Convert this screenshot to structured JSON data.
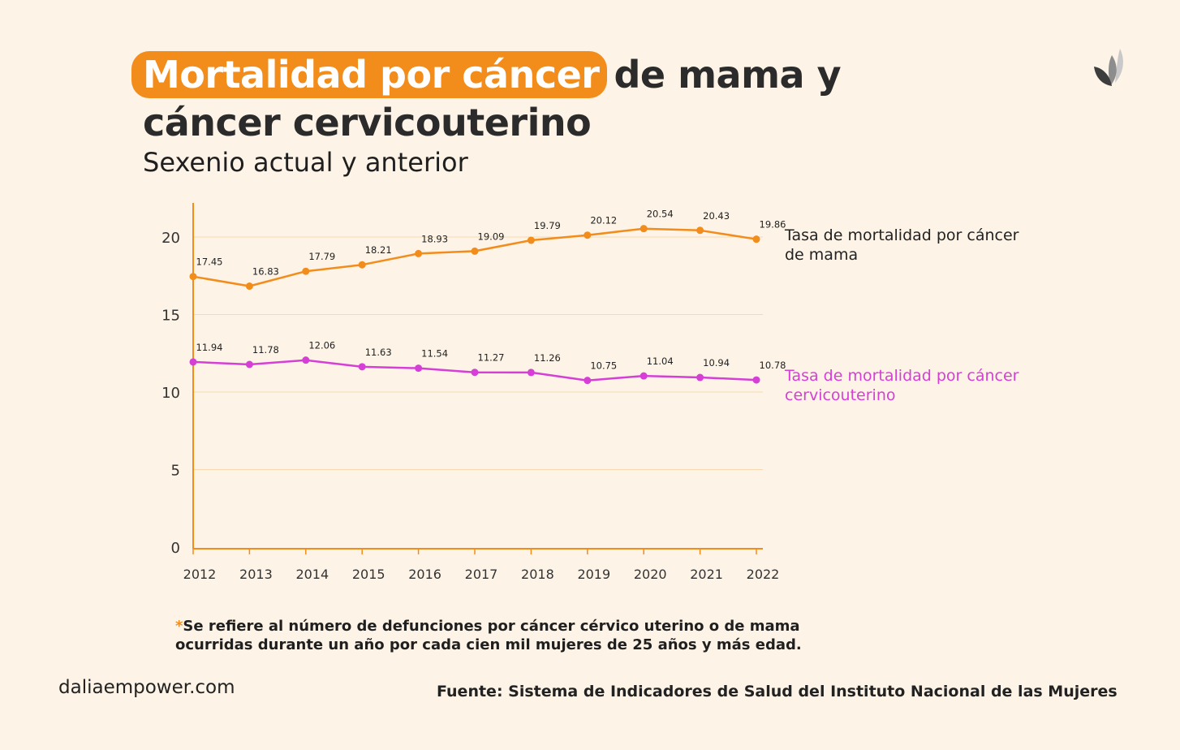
{
  "title": {
    "highlight": "Mortalidad por cáncer",
    "rest_line1": "de mama y",
    "line2": "cáncer cervicouterino"
  },
  "subtitle": "Sexenio actual y anterior",
  "colors": {
    "accent": "#f28c1b",
    "series_mama": "#f28c1b",
    "series_cervico": "#d63fd6",
    "background": "#fdf3e6"
  },
  "logo": {
    "icon": "leaf-logo-icon"
  },
  "chart_data": {
    "type": "line",
    "categories": [
      "2012",
      "2013",
      "2014",
      "2015",
      "2016",
      "2017",
      "2018",
      "2019",
      "2020",
      "2021",
      "2022"
    ],
    "series": [
      {
        "name": "Tasa de mortalidad por cáncer de mama",
        "name_lines": [
          "Tasa de mortalidad por cáncer",
          "de mama"
        ],
        "color": "#f28c1b",
        "values": [
          17.45,
          16.83,
          17.79,
          18.21,
          18.93,
          19.09,
          19.79,
          20.12,
          20.54,
          20.43,
          19.86
        ],
        "labels": [
          "17.45",
          "16.83",
          "17.79",
          "18.21",
          "18.93",
          "19.09",
          "19.79",
          "20.12",
          "20.54",
          "20.43",
          "19.86"
        ]
      },
      {
        "name": "Tasa de mortalidad por cáncer cervicouterino",
        "name_lines": [
          "Tasa de mortalidad por cáncer",
          "cervicouterino"
        ],
        "color": "#d63fd6",
        "values": [
          11.94,
          11.78,
          12.06,
          11.63,
          11.54,
          11.27,
          11.26,
          10.75,
          11.04,
          10.94,
          10.78
        ],
        "labels": [
          "11.94",
          "11.78",
          "12.06",
          "11.63",
          "11.54",
          "11.27",
          "11.26",
          "10.75",
          "11.04",
          "10.94",
          "10.78"
        ]
      }
    ],
    "yticks": [
      "0",
      "5",
      "10",
      "15",
      "20"
    ],
    "ylim": [
      0,
      22
    ],
    "grid": true,
    "legend": "right"
  },
  "note": {
    "asterisk": "*",
    "line1": "Se refiere al número de defunciones por cáncer cérvico uterino o de mama",
    "line2": "ocurridas durante un año por cada cien mil mujeres de 25 años y más edad."
  },
  "website": "daliaempower.com",
  "source": "Fuente: Sistema de Indicadores de Salud del Instituto Nacional de las Mujeres"
}
